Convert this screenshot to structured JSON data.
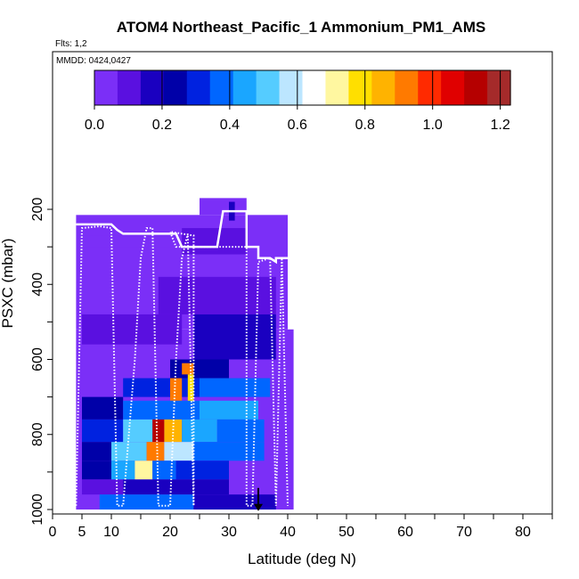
{
  "chart_data": {
    "type": "heatmap",
    "title": "ATOM4 Northeast_Pacific_1 Ammonium_PM1_AMS",
    "flights_label": "Flts: 1,2",
    "dates_label": "MMDD: 0424,0427",
    "xlabel": "Latitude (deg N)",
    "ylabel": "PSXC (mbar)",
    "xlim": [
      0,
      85
    ],
    "ylim": [
      1010,
      130
    ],
    "x_ticks": [
      "0",
      "5",
      "10",
      "20",
      "30",
      "40",
      "50",
      "60",
      "70",
      "80"
    ],
    "y_ticks": [
      "200",
      "400",
      "600",
      "800",
      "1000"
    ],
    "colorbar": {
      "range": [
        0,
        1.23
      ],
      "tick_labels": [
        "0.0",
        "0.2",
        "0.4",
        "0.6",
        "0.8",
        "1.0",
        "1.2"
      ],
      "colors": [
        "#7b2ff7",
        "#5a10e0",
        "#1a00c0",
        "#0000a8",
        "#0022e0",
        "#0066ff",
        "#1aa6ff",
        "#55ccff",
        "#bce6ff",
        "#ffffff",
        "#fff7a0",
        "#ffdf00",
        "#ffb300",
        "#ff7a00",
        "#ff2a00",
        "#e00000",
        "#b50000",
        "#a52a2a"
      ]
    },
    "cells": [
      {
        "lat": [
          4,
          41
        ],
        "p": [
          520,
          1000
        ],
        "v": 0.03
      },
      {
        "lat": [
          4,
          40
        ],
        "p": [
          215,
          520
        ],
        "v": 0.0
      },
      {
        "lat": [
          25,
          33
        ],
        "p": [
          170,
          215
        ],
        "v": 0.0
      },
      {
        "lat": [
          30,
          31
        ],
        "p": [
          180,
          230
        ],
        "v": 0.2
      },
      {
        "lat": [
          22,
          33
        ],
        "p": [
          250,
          320
        ],
        "v": 0.1
      },
      {
        "lat": [
          5,
          20
        ],
        "p": [
          270,
          300
        ],
        "v": 0.04
      },
      {
        "lat": [
          18,
          38
        ],
        "p": [
          380,
          480
        ],
        "v": 0.12
      },
      {
        "lat": [
          24,
          38
        ],
        "p": [
          480,
          600
        ],
        "v": 0.16
      },
      {
        "lat": [
          5,
          22
        ],
        "p": [
          480,
          560
        ],
        "v": 0.1
      },
      {
        "lat": [
          20,
          30
        ],
        "p": [
          600,
          650
        ],
        "v": 0.24
      },
      {
        "lat": [
          12,
          25
        ],
        "p": [
          650,
          700
        ],
        "v": 0.32
      },
      {
        "lat": [
          25,
          37
        ],
        "p": [
          650,
          700
        ],
        "v": 0.4
      },
      {
        "lat": [
          22,
          24
        ],
        "p": [
          610,
          640
        ],
        "v": 0.9
      },
      {
        "lat": [
          23,
          24
        ],
        "p": [
          640,
          720
        ],
        "v": 0.8
      },
      {
        "lat": [
          20,
          22
        ],
        "p": [
          650,
          710
        ],
        "v": 0.9
      },
      {
        "lat": [
          5,
          12
        ],
        "p": [
          700,
          760
        ],
        "v": 0.26
      },
      {
        "lat": [
          12,
          25
        ],
        "p": [
          710,
          760
        ],
        "v": 0.36
      },
      {
        "lat": [
          25,
          35
        ],
        "p": [
          710,
          760
        ],
        "v": 0.44
      },
      {
        "lat": [
          5,
          12
        ],
        "p": [
          760,
          820
        ],
        "v": 0.28
      },
      {
        "lat": [
          12,
          17
        ],
        "p": [
          760,
          820
        ],
        "v": 0.5
      },
      {
        "lat": [
          17,
          19
        ],
        "p": [
          760,
          820
        ],
        "v": 1.1
      },
      {
        "lat": [
          19,
          22
        ],
        "p": [
          760,
          820
        ],
        "v": 0.82
      },
      {
        "lat": [
          22,
          28
        ],
        "p": [
          760,
          820
        ],
        "v": 0.45
      },
      {
        "lat": [
          28,
          36
        ],
        "p": [
          760,
          820
        ],
        "v": 0.38
      },
      {
        "lat": [
          5,
          10
        ],
        "p": [
          820,
          870
        ],
        "v": 0.24
      },
      {
        "lat": [
          10,
          16
        ],
        "p": [
          820,
          870
        ],
        "v": 0.5
      },
      {
        "lat": [
          16,
          19
        ],
        "p": [
          820,
          870
        ],
        "v": 0.92
      },
      {
        "lat": [
          19,
          24
        ],
        "p": [
          820,
          870
        ],
        "v": 0.55
      },
      {
        "lat": [
          24,
          36
        ],
        "p": [
          820,
          870
        ],
        "v": 0.36
      },
      {
        "lat": [
          5,
          10
        ],
        "p": [
          870,
          920
        ],
        "v": 0.22
      },
      {
        "lat": [
          10,
          14
        ],
        "p": [
          870,
          920
        ],
        "v": 0.45
      },
      {
        "lat": [
          14,
          17
        ],
        "p": [
          870,
          920
        ],
        "v": 0.75
      },
      {
        "lat": [
          17,
          21
        ],
        "p": [
          870,
          920
        ],
        "v": 0.4
      },
      {
        "lat": [
          21,
          30
        ],
        "p": [
          870,
          920
        ],
        "v": 0.28
      },
      {
        "lat": [
          5,
          12
        ],
        "p": [
          920,
          960
        ],
        "v": 0.12
      },
      {
        "lat": [
          12,
          30
        ],
        "p": [
          920,
          960
        ],
        "v": 0.2
      },
      {
        "lat": [
          8,
          24
        ],
        "p": [
          960,
          1000
        ],
        "v": 0.38
      },
      {
        "lat": [
          24,
          38
        ],
        "p": [
          960,
          1000
        ],
        "v": 0.16
      }
    ],
    "flight_track": [
      [
        4,
        990
      ],
      [
        5,
        250
      ],
      [
        8,
        245
      ],
      [
        10,
        250
      ],
      [
        11,
        990
      ],
      [
        12,
        990
      ],
      [
        14,
        600
      ],
      [
        15,
        330
      ],
      [
        16,
        250
      ],
      [
        17,
        250
      ],
      [
        18,
        990
      ],
      [
        20,
        990
      ],
      [
        21,
        600
      ],
      [
        22,
        330
      ],
      [
        23,
        265
      ],
      [
        24,
        990
      ],
      [
        24,
        270
      ],
      [
        20,
        260
      ],
      [
        21,
        300
      ],
      [
        33,
        300
      ],
      [
        33,
        990
      ],
      [
        34,
        990
      ],
      [
        35,
        340
      ],
      [
        37,
        330
      ],
      [
        38,
        990
      ],
      [
        39,
        330
      ],
      [
        40,
        990
      ]
    ],
    "flight_track_solid": [
      [
        4,
        240
      ],
      [
        10,
        240
      ],
      [
        11,
        255
      ],
      [
        12,
        265
      ],
      [
        21,
        265
      ],
      [
        22,
        300
      ],
      [
        28,
        300
      ],
      [
        29,
        205
      ],
      [
        33,
        205
      ],
      [
        33,
        300
      ],
      [
        35,
        300
      ],
      [
        35,
        330
      ],
      [
        37,
        330
      ],
      [
        38,
        340
      ],
      [
        38,
        330
      ],
      [
        40,
        330
      ]
    ],
    "marker": {
      "lat": 35,
      "p": 990
    }
  }
}
